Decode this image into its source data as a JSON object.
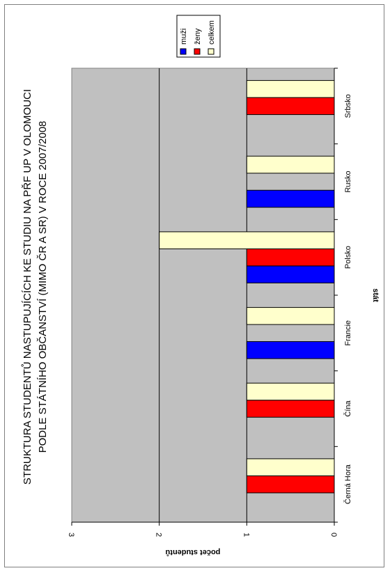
{
  "chart_data": {
    "type": "bar",
    "orientation": "rotated-90",
    "title_lines": [
      "STRUKTURA STUDENTŮ NASTUPUJÍCÍCH KE STUDIU NA PŘF UP V OLOMOUCI",
      "PODLE STÁTNÍHO OBČANSTVÍ (MIMO ČR A SR) V ROCE 2007/2008"
    ],
    "xlabel": "stát",
    "ylabel": "počet studentů",
    "categories": [
      "Černá Hora",
      "Čína",
      "Francie",
      "Polsko",
      "Rusko",
      "Srbsko"
    ],
    "series": [
      {
        "name": "muži",
        "color": "#0000ff",
        "values": [
          0,
          0,
          1,
          1,
          1,
          0
        ]
      },
      {
        "name": "ženy",
        "color": "#ff0000",
        "values": [
          1,
          1,
          0,
          1,
          0,
          1
        ]
      },
      {
        "name": "celkem",
        "color": "#ffffcc",
        "values": [
          1,
          1,
          1,
          2,
          1,
          1
        ]
      }
    ],
    "ylim": [
      0,
      3
    ],
    "yticks": [
      "0",
      "1",
      "2",
      "3"
    ],
    "grid": true,
    "plot_background": "#c0c0c0",
    "legend_position": "top-right"
  }
}
